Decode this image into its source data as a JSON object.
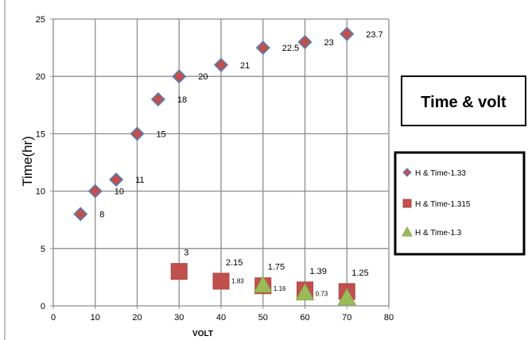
{
  "chart_data": {
    "type": "scatter",
    "title": "Time & volt",
    "xlabel": "VOLT",
    "ylabel": "Time(hr)",
    "xlim": [
      0,
      80
    ],
    "ylim": [
      0,
      25
    ],
    "x_ticks": [
      "0",
      "10",
      "20",
      "30",
      "40",
      "50",
      "60",
      "70",
      "80"
    ],
    "y_ticks": [
      "0",
      "5",
      "10",
      "15",
      "20",
      "25"
    ],
    "grid": true,
    "legend_position": "right",
    "series": [
      {
        "name": "H & Time-1.33",
        "marker": "diamond",
        "color": "#C0504D",
        "edge_color": "#4F81BD",
        "x": [
          6.5,
          10,
          15,
          20,
          25,
          30,
          40,
          50,
          60,
          70
        ],
        "y": [
          8,
          10,
          11,
          15,
          18,
          20,
          21,
          22.5,
          23,
          23.7
        ],
        "labels": [
          "8",
          "10",
          "11",
          "15",
          "18",
          "20",
          "21",
          "22.5",
          "23",
          "23.7"
        ]
      },
      {
        "name": "H & Time-1.315",
        "marker": "square",
        "color": "#C0504D",
        "x": [
          30,
          40,
          50,
          60,
          70
        ],
        "y": [
          3,
          2.15,
          1.75,
          1.39,
          1.25
        ],
        "labels": [
          "3",
          "2.15",
          "1.75",
          "1.39",
          "1.25"
        ]
      },
      {
        "name": "H & Time-1.3",
        "marker": "triangle",
        "color": "#9BBB59",
        "x": [
          50,
          60,
          70
        ],
        "y": [
          1.83,
          1.16,
          0.73
        ],
        "labels": [
          "1.83",
          "1.16",
          "0.73"
        ]
      }
    ]
  }
}
